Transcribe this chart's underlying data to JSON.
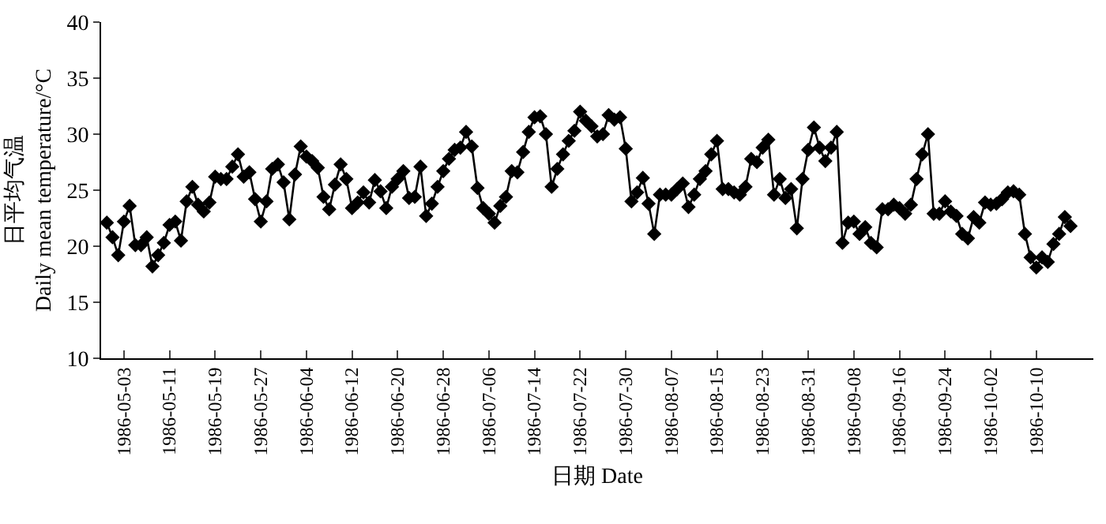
{
  "chart_data": {
    "type": "line",
    "xlabel": "日期 Date",
    "ylabel": "日平均气温\nDaily mean temperature/°C",
    "xlim": [
      "1986-04-29",
      "1986-10-20"
    ],
    "xticks": [
      "1986-05-03",
      "1986-05-11",
      "1986-05-19",
      "1986-05-27",
      "1986-06-04",
      "1986-06-12",
      "1986-06-20",
      "1986-06-28",
      "1986-07-06",
      "1986-07-14",
      "1986-07-22",
      "1986-07-30",
      "1986-08-07",
      "1986-08-15",
      "1986-08-23",
      "1986-08-31",
      "1986-09-08",
      "1986-09-16",
      "1986-09-24",
      "1986-10-02",
      "1986-10-10"
    ],
    "ylim": [
      10,
      40
    ],
    "yticks": [
      10,
      15,
      20,
      25,
      30,
      35,
      40
    ],
    "marker": "diamond",
    "line_style": "solid",
    "x": [
      "1986-04-30",
      "1986-05-01",
      "1986-05-02",
      "1986-05-03",
      "1986-05-04",
      "1986-05-05",
      "1986-05-06",
      "1986-05-07",
      "1986-05-08",
      "1986-05-09",
      "1986-05-10",
      "1986-05-11",
      "1986-05-12",
      "1986-05-13",
      "1986-05-14",
      "1986-05-15",
      "1986-05-16",
      "1986-05-17",
      "1986-05-18",
      "1986-05-19",
      "1986-05-20",
      "1986-05-21",
      "1986-05-22",
      "1986-05-23",
      "1986-05-24",
      "1986-05-25",
      "1986-05-26",
      "1986-05-27",
      "1986-05-28",
      "1986-05-29",
      "1986-05-30",
      "1986-05-31",
      "1986-06-01",
      "1986-06-02",
      "1986-06-03",
      "1986-06-04",
      "1986-06-05",
      "1986-06-06",
      "1986-06-07",
      "1986-06-08",
      "1986-06-09",
      "1986-06-10",
      "1986-06-11",
      "1986-06-12",
      "1986-06-13",
      "1986-06-14",
      "1986-06-15",
      "1986-06-16",
      "1986-06-17",
      "1986-06-18",
      "1986-06-19",
      "1986-06-20",
      "1986-06-21",
      "1986-06-22",
      "1986-06-23",
      "1986-06-24",
      "1986-06-25",
      "1986-06-26",
      "1986-06-27",
      "1986-06-28",
      "1986-06-29",
      "1986-06-30",
      "1986-07-01",
      "1986-07-02",
      "1986-07-03",
      "1986-07-04",
      "1986-07-05",
      "1986-07-06",
      "1986-07-07",
      "1986-07-08",
      "1986-07-09",
      "1986-07-10",
      "1986-07-11",
      "1986-07-12",
      "1986-07-13",
      "1986-07-14",
      "1986-07-15",
      "1986-07-16",
      "1986-07-17",
      "1986-07-18",
      "1986-07-19",
      "1986-07-20",
      "1986-07-21",
      "1986-07-22",
      "1986-07-23",
      "1986-07-24",
      "1986-07-25",
      "1986-07-26",
      "1986-07-27",
      "1986-07-28",
      "1986-07-29",
      "1986-07-30",
      "1986-07-31",
      "1986-08-01",
      "1986-08-02",
      "1986-08-03",
      "1986-08-04",
      "1986-08-05",
      "1986-08-06",
      "1986-08-07",
      "1986-08-08",
      "1986-08-09",
      "1986-08-10",
      "1986-08-11",
      "1986-08-12",
      "1986-08-13",
      "1986-08-14",
      "1986-08-15",
      "1986-08-16",
      "1986-08-17",
      "1986-08-18",
      "1986-08-19",
      "1986-08-20",
      "1986-08-21",
      "1986-08-22",
      "1986-08-23",
      "1986-08-24",
      "1986-08-25",
      "1986-08-26",
      "1986-08-27",
      "1986-08-28",
      "1986-08-29",
      "1986-08-30",
      "1986-08-31",
      "1986-09-01",
      "1986-09-02",
      "1986-09-03",
      "1986-09-04",
      "1986-09-05",
      "1986-09-06",
      "1986-09-07",
      "1986-09-08",
      "1986-09-09",
      "1986-09-10",
      "1986-09-11",
      "1986-09-12",
      "1986-09-13",
      "1986-09-14",
      "1986-09-15",
      "1986-09-16",
      "1986-09-17",
      "1986-09-18",
      "1986-09-19",
      "1986-09-20",
      "1986-09-21",
      "1986-09-22",
      "1986-09-23",
      "1986-09-24",
      "1986-09-25",
      "1986-09-26",
      "1986-09-27",
      "1986-09-28",
      "1986-09-29",
      "1986-09-30",
      "1986-10-01",
      "1986-10-02",
      "1986-10-03",
      "1986-10-04",
      "1986-10-05",
      "1986-10-06",
      "1986-10-07",
      "1986-10-08",
      "1986-10-09",
      "1986-10-10",
      "1986-10-11",
      "1986-10-12",
      "1986-10-13",
      "1986-10-14",
      "1986-10-15",
      "1986-10-16"
    ],
    "series": [
      {
        "color": "#000000",
        "values": [
          22.1,
          20.8,
          19.2,
          22.2,
          23.6,
          20.1,
          20.1,
          20.8,
          18.2,
          19.2,
          20.3,
          21.9,
          22.2,
          20.5,
          24.0,
          25.3,
          23.7,
          23.1,
          23.9,
          26.2,
          26.0,
          26.0,
          27.1,
          28.2,
          26.2,
          26.6,
          24.2,
          22.2,
          24.0,
          26.9,
          27.3,
          25.7,
          22.4,
          26.4,
          28.9,
          28.0,
          27.6,
          27.0,
          24.4,
          23.3,
          25.5,
          27.3,
          26.0,
          23.4,
          23.9,
          24.8,
          23.9,
          25.9,
          24.9,
          23.4,
          25.3,
          26.0,
          26.7,
          24.3,
          24.4,
          27.1,
          22.7,
          23.8,
          25.3,
          26.7,
          27.8,
          28.6,
          28.8,
          30.2,
          28.9,
          25.2,
          23.4,
          22.9,
          22.1,
          23.6,
          24.4,
          26.7,
          26.6,
          28.4,
          30.2,
          31.5,
          31.6,
          30.0,
          25.3,
          26.9,
          28.2,
          29.4,
          30.3,
          32.0,
          31.2,
          30.7,
          29.8,
          30.0,
          31.7,
          31.3,
          31.5,
          28.7,
          24.0,
          24.8,
          26.1,
          23.8,
          21.1,
          24.6,
          24.6,
          24.6,
          25.1,
          25.6,
          23.5,
          24.6,
          26.0,
          26.7,
          28.2,
          29.4,
          25.1,
          25.1,
          24.8,
          24.6,
          25.3,
          27.8,
          27.5,
          28.8,
          29.5,
          24.6,
          26.0,
          24.3,
          25.1,
          21.6,
          26.0,
          28.6,
          30.6,
          28.8,
          27.6,
          28.8,
          30.2,
          20.3,
          22.1,
          22.2,
          21.1,
          21.7,
          20.3,
          19.9,
          23.3,
          23.3,
          23.7,
          23.4,
          22.9,
          23.7,
          26.0,
          28.2,
          30.0,
          22.9,
          22.9,
          24.0,
          23.1,
          22.7,
          21.1,
          20.7,
          22.6,
          22.1,
          23.9,
          23.7,
          23.8,
          24.2,
          24.8,
          24.9,
          24.6,
          21.1,
          19.0,
          18.1,
          19.0,
          18.6,
          20.2,
          21.1,
          22.6,
          21.8
        ]
      }
    ]
  }
}
